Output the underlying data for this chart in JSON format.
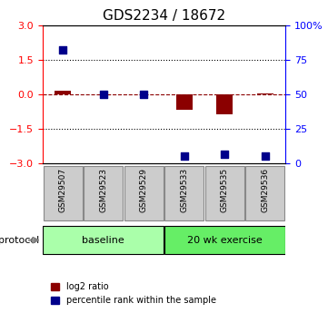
{
  "title": "GDS2234 / 18672",
  "samples": [
    "GSM29507",
    "GSM29523",
    "GSM29529",
    "GSM29533",
    "GSM29535",
    "GSM29536"
  ],
  "log2_ratio": [
    0.15,
    0.0,
    0.0,
    -0.7,
    -0.9,
    0.02
  ],
  "percentile_rank": [
    82,
    50,
    50,
    5,
    6,
    5
  ],
  "groups": [
    {
      "label": "baseline",
      "samples": [
        0,
        1,
        2
      ],
      "color": "#aaffaa"
    },
    {
      "label": "20 wk exercise",
      "samples": [
        3,
        4,
        5
      ],
      "color": "#66ee66"
    }
  ],
  "left_ylim": [
    -3,
    3
  ],
  "left_yticks": [
    -3,
    -1.5,
    0,
    1.5,
    3
  ],
  "right_ylim": [
    0,
    100
  ],
  "right_yticks": [
    0,
    25,
    50,
    75,
    100
  ],
  "right_yticklabels": [
    "0",
    "25",
    "50",
    "75",
    "100%"
  ],
  "hline_y": 0,
  "dotted_lines": [
    -1.5,
    1.5
  ],
  "bar_color": "#8B0000",
  "scatter_color": "#00008B",
  "bar_width": 0.4,
  "scatter_size": 40,
  "protocol_label": "protocol",
  "legend_items": [
    {
      "color": "#8B0000",
      "label": "log2 ratio"
    },
    {
      "color": "#00008B",
      "label": "percentile rank within the sample"
    }
  ],
  "sample_box_color": "#cccccc",
  "sample_box_border": "#888888"
}
